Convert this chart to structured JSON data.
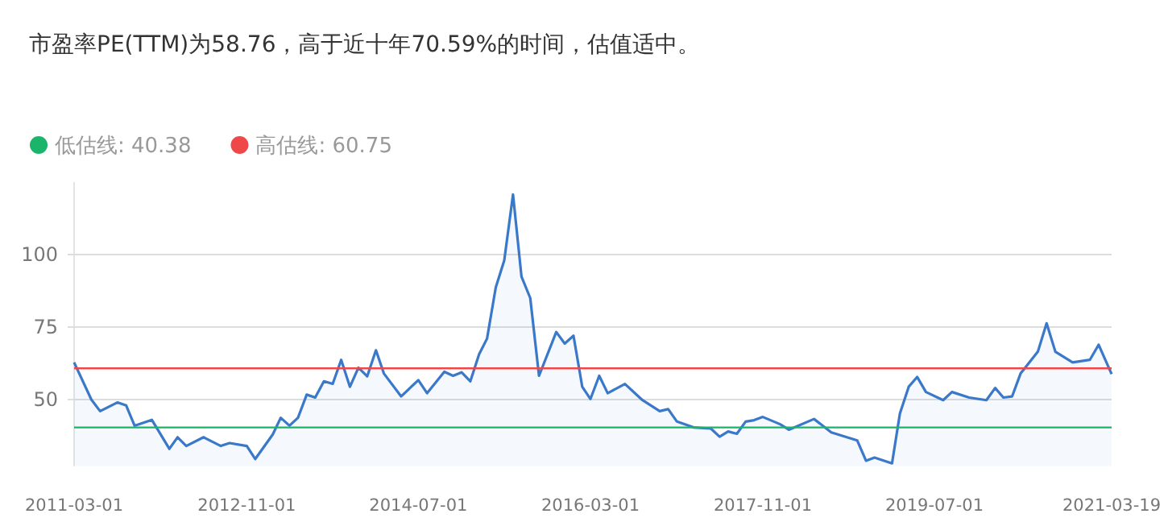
{
  "chart_data": {
    "type": "area",
    "title": "市盈率PE(TTM)为58.76，高于近十年70.59%的时间，估值适中。",
    "x": [
      "2011-03-01",
      "2011-05-01",
      "2011-06-01",
      "2011-08-01",
      "2011-09-01",
      "2011-10-01",
      "2011-12-01",
      "2012-01-01",
      "2012-02-01",
      "2012-03-01",
      "2012-04-01",
      "2012-06-01",
      "2012-08-01",
      "2012-09-01",
      "2012-11-01",
      "2012-12-01",
      "2013-02-01",
      "2013-03-01",
      "2013-04-01",
      "2013-05-01",
      "2013-06-01",
      "2013-07-01",
      "2013-08-01",
      "2013-09-01",
      "2013-10-01",
      "2013-11-01",
      "2013-12-01",
      "2014-01-01",
      "2014-02-01",
      "2014-03-01",
      "2014-05-01",
      "2014-07-01",
      "2014-08-01",
      "2014-10-01",
      "2014-11-01",
      "2014-12-01",
      "2015-01-01",
      "2015-02-01",
      "2015-03-01",
      "2015-04-01",
      "2015-05-01",
      "2015-06-01",
      "2015-07-01",
      "2015-08-01",
      "2015-09-01",
      "2015-11-01",
      "2015-12-01",
      "2016-01-01",
      "2016-02-01",
      "2016-03-01",
      "2016-04-01",
      "2016-05-01",
      "2016-07-01",
      "2016-09-01",
      "2016-11-01",
      "2016-12-01",
      "2017-01-01",
      "2017-03-01",
      "2017-05-01",
      "2017-06-01",
      "2017-07-01",
      "2017-08-01",
      "2017-09-01",
      "2017-10-01",
      "2017-11-01",
      "2018-01-01",
      "2018-02-01",
      "2018-05-01",
      "2018-07-01",
      "2018-10-01",
      "2018-11-01",
      "2018-12-01",
      "2019-02-01",
      "2019-03-01",
      "2019-04-01",
      "2019-05-01",
      "2019-06-01",
      "2019-08-01",
      "2019-09-01",
      "2019-11-01",
      "2020-01-01",
      "2020-02-01",
      "2020-03-01",
      "2020-04-01",
      "2020-05-01",
      "2020-07-01",
      "2020-08-01",
      "2020-09-01",
      "2020-11-01",
      "2021-01-01",
      "2021-02-01",
      "2021-03-19"
    ],
    "series": [
      {
        "color": "#3a78c9",
        "values": [
          62.8,
          50,
          46,
          49,
          48,
          41,
          43,
          38,
          33,
          37,
          34,
          37,
          34,
          35,
          34,
          29.5,
          38,
          43.7,
          41,
          43.7,
          51.7,
          50.7,
          56.3,
          55.4,
          63.7,
          54.4,
          61,
          58,
          67,
          59,
          51.1,
          56.7,
          52.2,
          59.6,
          58.2,
          59.4,
          56.3,
          65.6,
          71,
          88.7,
          98,
          120.7,
          92.4,
          85,
          58.2,
          73.3,
          69.3,
          72,
          54.4,
          50.2,
          58.2,
          52.2,
          55.4,
          49.8,
          46,
          46.7,
          42.4,
          40.4,
          40,
          37.2,
          39,
          38.2,
          42.4,
          42.9,
          44,
          41.5,
          39.6,
          43.3,
          38.7,
          35.9,
          28.9,
          30,
          28,
          45.2,
          54.4,
          57.8,
          52.6,
          49.8,
          52.6,
          50.7,
          49.8,
          54,
          50.7,
          51.1,
          59,
          66.5,
          76.3,
          66.5,
          62.8,
          63.7,
          68.9,
          58.8
        ]
      }
    ],
    "xlim": [
      "2011-03-01",
      "2021-03-19"
    ],
    "xticks": [
      "2011-03-01",
      "2012-11-01",
      "2014-07-01",
      "2016-03-01",
      "2017-11-01",
      "2019-07-01",
      "2021-03-19"
    ],
    "ylim": [
      27,
      125
    ],
    "yticks": [
      50,
      75,
      100
    ],
    "grid": "y",
    "legend": "top left",
    "ref_lines": [
      {
        "axis": "y",
        "value": 40.38,
        "label": "低估线: 40.38",
        "color": "#1bb46b"
      },
      {
        "axis": "y",
        "value": 60.75,
        "label": "高估线: 60.75",
        "color": "#f04848"
      }
    ]
  }
}
